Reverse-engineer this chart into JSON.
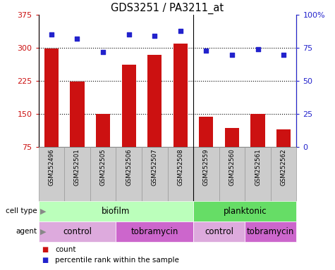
{
  "title": "GDS3251 / PA3211_at",
  "samples": [
    "GSM252496",
    "GSM252501",
    "GSM252505",
    "GSM252506",
    "GSM252507",
    "GSM252508",
    "GSM252559",
    "GSM252560",
    "GSM252561",
    "GSM252562"
  ],
  "counts": [
    298,
    224,
    151,
    262,
    285,
    310,
    144,
    118,
    151,
    115
  ],
  "percentiles": [
    85,
    82,
    72,
    85,
    84,
    88,
    73,
    70,
    74,
    70
  ],
  "ylim_left": [
    75,
    375
  ],
  "ylim_right": [
    0,
    100
  ],
  "yticks_left": [
    75,
    150,
    225,
    300,
    375
  ],
  "yticks_right": [
    0,
    25,
    50,
    75,
    100
  ],
  "bar_color": "#cc1111",
  "dot_color": "#2222cc",
  "cell_type_groups": [
    {
      "label": "biofilm",
      "start": 0,
      "end": 6,
      "color": "#bbffbb"
    },
    {
      "label": "planktonic",
      "start": 6,
      "end": 10,
      "color": "#66dd66"
    }
  ],
  "agent_groups": [
    {
      "label": "control",
      "start": 0,
      "end": 3,
      "color": "#ddaadd"
    },
    {
      "label": "tobramycin",
      "start": 3,
      "end": 6,
      "color": "#cc66cc"
    },
    {
      "label": "control",
      "start": 6,
      "end": 8,
      "color": "#ddaadd"
    },
    {
      "label": "tobramycin",
      "start": 8,
      "end": 10,
      "color": "#cc66cc"
    }
  ],
  "bar_bottom": 75,
  "sample_bg_color": "#cccccc",
  "sample_border_color": "#999999"
}
